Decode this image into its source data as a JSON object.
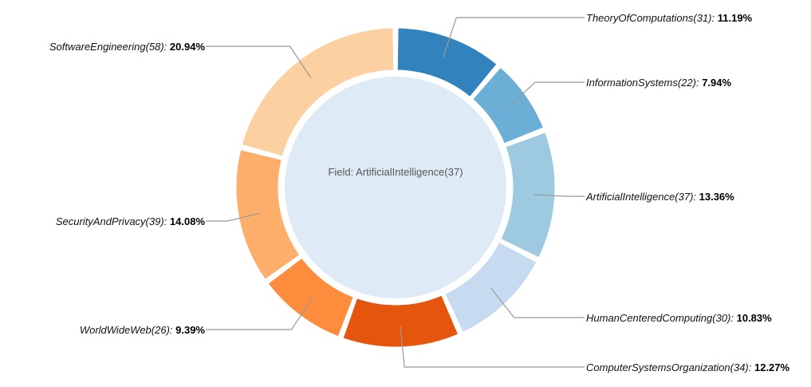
{
  "chart_data": {
    "type": "pie",
    "variant": "donut",
    "center_label": "Field: ArtificialIntelligence(37)",
    "slices": [
      {
        "name": "TheoryOfComputations",
        "count": 31,
        "percent": 11.19,
        "name_text": "TheoryOfComputations(31)",
        "pct_text": "11.19%",
        "color": "#3182bd",
        "label_side": "right"
      },
      {
        "name": "InformationSystems",
        "count": 22,
        "percent": 7.94,
        "name_text": "InformationSystems(22)",
        "pct_text": "7.94%",
        "color": "#6baed6",
        "label_side": "right"
      },
      {
        "name": "ArtificialIntelligence",
        "count": 37,
        "percent": 13.36,
        "name_text": "ArtificialIntelligence(37)",
        "pct_text": "13.36%",
        "color": "#9ecae1",
        "label_side": "right"
      },
      {
        "name": "HumanCenteredComputing",
        "count": 30,
        "percent": 10.83,
        "name_text": "HumanCenteredComputing(30)",
        "pct_text": "10.83%",
        "color": "#c6dbef",
        "label_side": "right"
      },
      {
        "name": "ComputerSystemsOrganization",
        "count": 34,
        "percent": 12.27,
        "name_text": "ComputerSystemsOrganization(34)",
        "pct_text": "12.27%",
        "color": "#e6550d",
        "label_side": "right"
      },
      {
        "name": "WorldWideWeb",
        "count": 26,
        "percent": 9.39,
        "name_text": "WorldWideWeb(26)",
        "pct_text": "9.39%",
        "color": "#fd8d3c",
        "label_side": "left"
      },
      {
        "name": "SecurityAndPrivacy",
        "count": 39,
        "percent": 14.08,
        "name_text": "SecurityAndPrivacy(39)",
        "pct_text": "14.08%",
        "color": "#fdae6b",
        "label_side": "left"
      },
      {
        "name": "SoftwareEngineering",
        "count": 58,
        "percent": 20.94,
        "name_text": "SoftwareEngineering(58)",
        "pct_text": "20.94%",
        "color": "#fdd0a2",
        "label_side": "left"
      }
    ],
    "center_fill": "#deebf7",
    "leader_color": "#999999"
  }
}
